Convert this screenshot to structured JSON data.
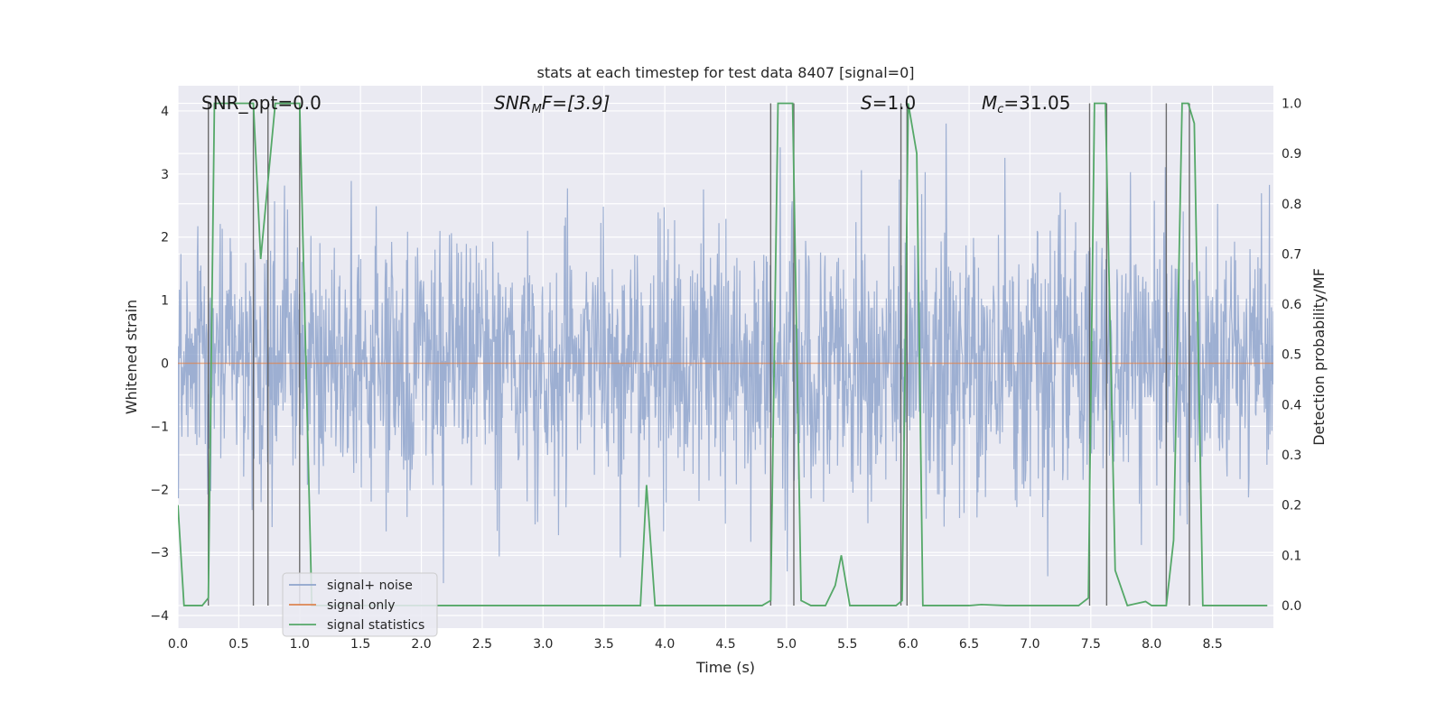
{
  "chart_data": {
    "type": "line",
    "title": "stats at each timestep for test data 8407 [signal=0]",
    "xlabel": "Time (s)",
    "ylabel": "Whitened strain",
    "y2label": "Detection probability/MF",
    "xlim": [
      0,
      9
    ],
    "ylim": [
      -4.2,
      4.4
    ],
    "y2lim": [
      -0.045,
      1.035
    ],
    "x_ticks": [
      0.0,
      0.5,
      1.0,
      1.5,
      2.0,
      2.5,
      3.0,
      3.5,
      4.0,
      4.5,
      5.0,
      5.5,
      6.0,
      6.5,
      7.0,
      7.5,
      8.0,
      8.5
    ],
    "x_tick_labels": [
      "0.0",
      "0.5",
      "1.0",
      "1.5",
      "2.0",
      "2.5",
      "3.0",
      "3.5",
      "4.0",
      "4.5",
      "5.0",
      "5.5",
      "6.0",
      "6.5",
      "7.0",
      "7.5",
      "8.0",
      "8.5"
    ],
    "y_ticks": [
      -4,
      -3,
      -2,
      -1,
      0,
      1,
      2,
      3,
      4
    ],
    "y_tick_labels": [
      "−4",
      "−3",
      "−2",
      "−1",
      "0",
      "1",
      "2",
      "3",
      "4"
    ],
    "y2_ticks": [
      0.0,
      0.1,
      0.2,
      0.3,
      0.4,
      0.5,
      0.6,
      0.7,
      0.8,
      0.9,
      1.0
    ],
    "y2_tick_labels": [
      "0.0",
      "0.1",
      "0.2",
      "0.3",
      "0.4",
      "0.5",
      "0.6",
      "0.7",
      "0.8",
      "0.9",
      "1.0"
    ],
    "annotations": {
      "snr_opt": "SNR_opt=0.0",
      "snr_mf_base": "SNR",
      "snr_mf_sub": "M",
      "snr_mf_rest": "F=[3.9]",
      "s_base": "S",
      "s_rest": "=1.0",
      "mc_base": "M",
      "mc_sub": "c",
      "mc_rest": "=31.05"
    },
    "legend": {
      "position": "lower-left",
      "entries": [
        "signal+ noise",
        "signal only",
        "signal statistics"
      ]
    },
    "colors": {
      "noise": "#8fa4cc",
      "signal_only": "#dd8452",
      "statistics": "#55a868",
      "vlines": "#555555",
      "axes_bg": "#eaeaf2",
      "grid": "#ffffff"
    },
    "series": [
      {
        "name": "signal+ noise",
        "kind": "noise",
        "sigma": 0.75,
        "band_extent": 2.9,
        "points": 2200
      },
      {
        "name": "signal only",
        "kind": "constant",
        "value": 0.0
      },
      {
        "name": "signal statistics",
        "kind": "line",
        "axis": "right",
        "x": [
          0.0,
          0.05,
          0.2,
          0.25,
          0.3,
          0.62,
          0.68,
          0.8,
          0.92,
          1.0,
          1.1,
          1.2,
          3.8,
          3.85,
          3.92,
          4.8,
          4.87,
          4.93,
          5.05,
          5.12,
          5.2,
          5.32,
          5.4,
          5.45,
          5.52,
          5.9,
          5.95,
          6.0,
          6.07,
          6.12,
          6.5,
          6.6,
          6.8,
          7.4,
          7.48,
          7.53,
          7.62,
          7.7,
          7.8,
          7.95,
          8.0,
          8.12,
          8.18,
          8.25,
          8.3,
          8.35,
          8.42,
          8.95
        ],
        "y": [
          0.2,
          0.0,
          0.0,
          0.015,
          1.0,
          1.0,
          0.69,
          1.0,
          1.0,
          1.0,
          0.0,
          0.0,
          0.0,
          0.24,
          0.0,
          0.0,
          0.01,
          1.0,
          1.0,
          0.01,
          0.0,
          0.0,
          0.04,
          0.1,
          0.0,
          0.0,
          0.01,
          1.0,
          0.9,
          0.0,
          0.0,
          0.002,
          0.0,
          0.0,
          0.015,
          1.0,
          1.0,
          0.07,
          0.0,
          0.008,
          0.0,
          0.0,
          0.13,
          1.0,
          1.0,
          0.96,
          0.0,
          0.0
        ]
      }
    ],
    "vlines": [
      0.25,
      0.62,
      0.74,
      1.0,
      4.87,
      5.06,
      5.94,
      5.99,
      7.49,
      7.63,
      8.12,
      8.31
    ]
  }
}
